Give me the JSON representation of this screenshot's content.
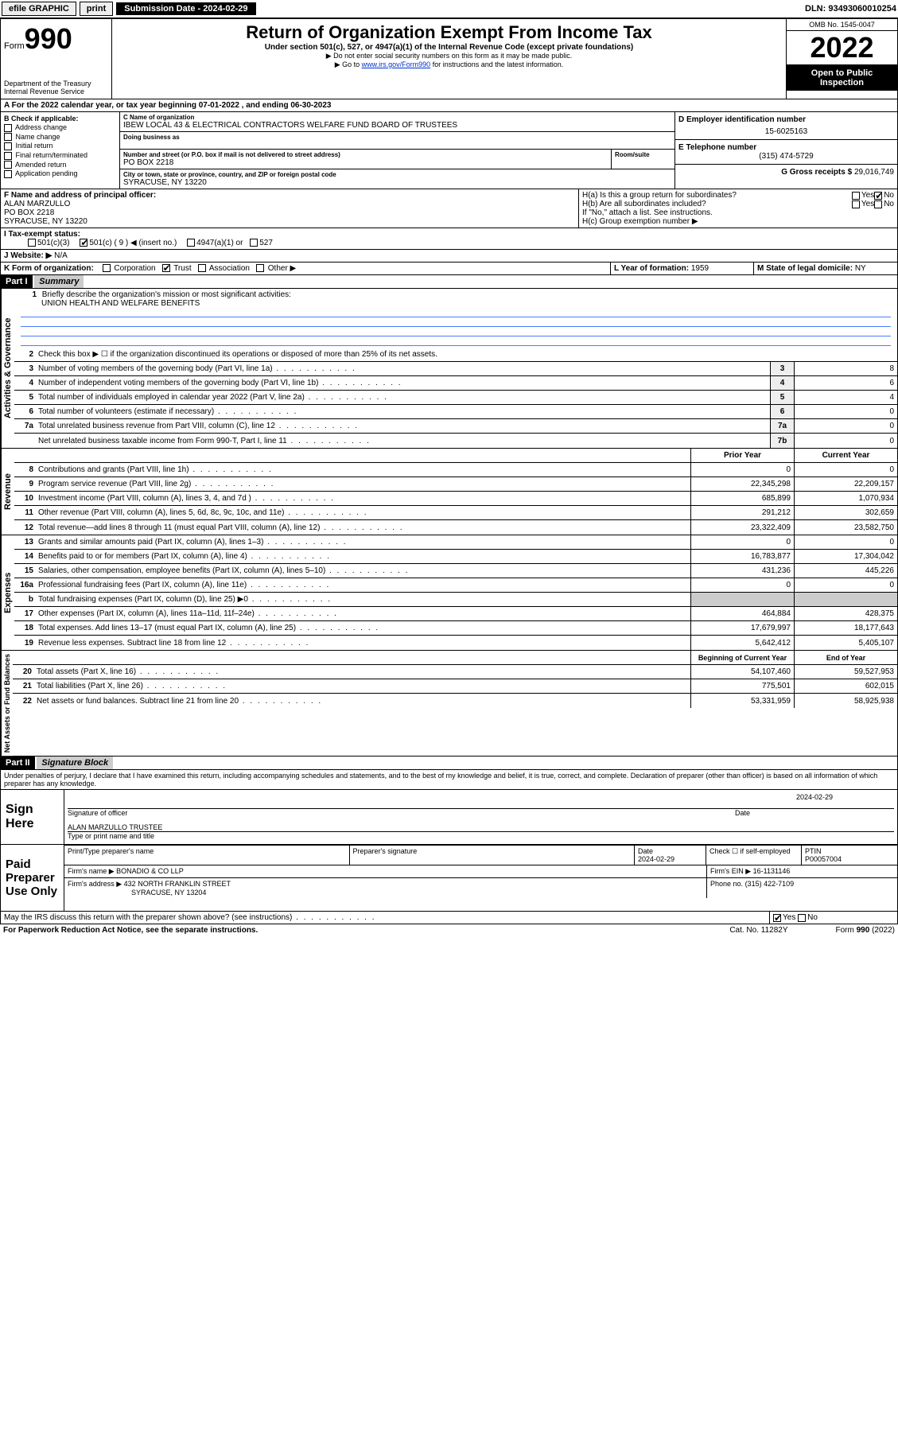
{
  "topbar": {
    "efile": "efile GRAPHIC",
    "print": "print",
    "submission_label": "Submission Date - 2024-02-29",
    "dln": "DLN: 93493060010254"
  },
  "header": {
    "form_word": "Form",
    "form_num": "990",
    "dept": "Department of the Treasury\nInternal Revenue Service",
    "title": "Return of Organization Exempt From Income Tax",
    "sub": "Under section 501(c), 527, or 4947(a)(1) of the Internal Revenue Code (except private foundations)",
    "note1": "▶ Do not enter social security numbers on this form as it may be made public.",
    "note2_pre": "▶ Go to ",
    "note2_link": "www.irs.gov/Form990",
    "note2_post": " for instructions and the latest information.",
    "omb": "OMB No. 1545-0047",
    "year": "2022",
    "inspection": "Open to Public Inspection"
  },
  "line_a": "For the 2022 calendar year, or tax year beginning 07-01-2022    , and ending 06-30-2023",
  "section_b": {
    "label": "B Check if applicable:",
    "opts": [
      "Address change",
      "Name change",
      "Initial return",
      "Final return/terminated",
      "Amended return",
      "Application pending"
    ]
  },
  "section_c": {
    "name_label": "C Name of organization",
    "name": "IBEW LOCAL 43 & ELECTRICAL CONTRACTORS WELFARE FUND BOARD OF TRUSTEES",
    "dba": "Doing business as",
    "addr_label": "Number and street (or P.O. box if mail is not delivered to street address)",
    "room": "Room/suite",
    "addr": "PO BOX 2218",
    "city_label": "City or town, state or province, country, and ZIP or foreign postal code",
    "city": "SYRACUSE, NY  13220"
  },
  "section_d": {
    "label": "D Employer identification number",
    "val": "15-6025163"
  },
  "section_e": {
    "label": "E Telephone number",
    "val": "(315) 474-5729"
  },
  "section_g": {
    "label": "G Gross receipts $",
    "val": "29,016,749"
  },
  "section_f": {
    "label": "F  Name and address of principal officer:",
    "name": "ALAN MARZULLO",
    "addr1": "PO BOX 2218",
    "addr2": "SYRACUSE, NY  13220"
  },
  "section_h": {
    "ha": "H(a)  Is this a group return for subordinates?",
    "hb": "H(b)  Are all subordinates included?",
    "hb_note": "If \"No,\" attach a list. See instructions.",
    "hc": "H(c)  Group exemption number ▶",
    "yes": "Yes",
    "no": "No"
  },
  "section_i": {
    "label": "I    Tax-exempt status:",
    "o1": "501(c)(3)",
    "o2": "501(c) ( 9 ) ◀ (insert no.)",
    "o3": "4947(a)(1) or",
    "o4": "527"
  },
  "section_j": {
    "label": "J   Website: ▶",
    "val": "N/A"
  },
  "section_k": {
    "label": "K Form of organization:",
    "opts": [
      "Corporation",
      "Trust",
      "Association",
      "Other ▶"
    ]
  },
  "section_l": {
    "label": "L Year of formation:",
    "val": "1959"
  },
  "section_m": {
    "label": "M State of legal domicile:",
    "val": "NY"
  },
  "part1": {
    "hdr": "Part I",
    "title": "Summary",
    "q1": "Briefly describe the organization's mission or most significant activities:",
    "mission": "UNION HEALTH AND WELFARE BENEFITS",
    "q2": "Check this box ▶ ☐  if the organization discontinued its operations or disposed of more than 25% of its net assets.",
    "rows_ag": [
      {
        "n": "3",
        "t": "Number of voting members of the governing body (Part VI, line 1a)",
        "box": "3",
        "v": "8"
      },
      {
        "n": "4",
        "t": "Number of independent voting members of the governing body (Part VI, line 1b)",
        "box": "4",
        "v": "6"
      },
      {
        "n": "5",
        "t": "Total number of individuals employed in calendar year 2022 (Part V, line 2a)",
        "box": "5",
        "v": "4"
      },
      {
        "n": "6",
        "t": "Total number of volunteers (estimate if necessary)",
        "box": "6",
        "v": "0"
      },
      {
        "n": "7a",
        "t": "Total unrelated business revenue from Part VIII, column (C), line 12",
        "box": "7a",
        "v": "0"
      },
      {
        "n": "",
        "t": "Net unrelated business taxable income from Form 990-T, Part I, line 11",
        "box": "7b",
        "v": "0"
      }
    ],
    "col_prior": "Prior Year",
    "col_curr": "Current Year",
    "rows_rev": [
      {
        "n": "8",
        "t": "Contributions and grants (Part VIII, line 1h)",
        "p": "0",
        "c": "0"
      },
      {
        "n": "9",
        "t": "Program service revenue (Part VIII, line 2g)",
        "p": "22,345,298",
        "c": "22,209,157"
      },
      {
        "n": "10",
        "t": "Investment income (Part VIII, column (A), lines 3, 4, and 7d )",
        "p": "685,899",
        "c": "1,070,934"
      },
      {
        "n": "11",
        "t": "Other revenue (Part VIII, column (A), lines 5, 6d, 8c, 9c, 10c, and 11e)",
        "p": "291,212",
        "c": "302,659"
      },
      {
        "n": "12",
        "t": "Total revenue—add lines 8 through 11 (must equal Part VIII, column (A), line 12)",
        "p": "23,322,409",
        "c": "23,582,750"
      }
    ],
    "rows_exp": [
      {
        "n": "13",
        "t": "Grants and similar amounts paid (Part IX, column (A), lines 1–3)",
        "p": "0",
        "c": "0"
      },
      {
        "n": "14",
        "t": "Benefits paid to or for members (Part IX, column (A), line 4)",
        "p": "16,783,877",
        "c": "17,304,042"
      },
      {
        "n": "15",
        "t": "Salaries, other compensation, employee benefits (Part IX, column (A), lines 5–10)",
        "p": "431,236",
        "c": "445,226"
      },
      {
        "n": "16a",
        "t": "Professional fundraising fees (Part IX, column (A), line 11e)",
        "p": "0",
        "c": "0"
      },
      {
        "n": "b",
        "t": "Total fundraising expenses (Part IX, column (D), line 25) ▶0",
        "p": "",
        "c": "",
        "grey": true
      },
      {
        "n": "17",
        "t": "Other expenses (Part IX, column (A), lines 11a–11d, 11f–24e)",
        "p": "464,884",
        "c": "428,375"
      },
      {
        "n": "18",
        "t": "Total expenses. Add lines 13–17 (must equal Part IX, column (A), line 25)",
        "p": "17,679,997",
        "c": "18,177,643"
      },
      {
        "n": "19",
        "t": "Revenue less expenses. Subtract line 18 from line 12",
        "p": "5,642,412",
        "c": "5,405,107"
      }
    ],
    "col_beg": "Beginning of Current Year",
    "col_end": "End of Year",
    "rows_na": [
      {
        "n": "20",
        "t": "Total assets (Part X, line 16)",
        "p": "54,107,460",
        "c": "59,527,953"
      },
      {
        "n": "21",
        "t": "Total liabilities (Part X, line 26)",
        "p": "775,501",
        "c": "602,015"
      },
      {
        "n": "22",
        "t": "Net assets or fund balances. Subtract line 21 from line 20",
        "p": "53,331,959",
        "c": "58,925,938"
      }
    ],
    "vlabels": {
      "ag": "Activities & Governance",
      "rev": "Revenue",
      "exp": "Expenses",
      "na": "Net Assets or Fund Balances"
    }
  },
  "part2": {
    "hdr": "Part II",
    "title": "Signature Block",
    "decl": "Under penalties of perjury, I declare that I have examined this return, including accompanying schedules and statements, and to the best of my knowledge and belief, it is true, correct, and complete. Declaration of preparer (other than officer) is based on all information of which preparer has any knowledge.",
    "sign_here": "Sign Here",
    "sig_officer": "Signature of officer",
    "sig_date": "2024-02-29",
    "date_label": "Date",
    "officer_name": "ALAN MARZULLO  TRUSTEE",
    "type_name": "Type or print name and title",
    "paid": "Paid Preparer Use Only",
    "p_name_label": "Print/Type preparer's name",
    "p_sig_label": "Preparer's signature",
    "p_date_label": "Date",
    "p_date": "2024-02-29",
    "p_check": "Check ☐ if self-employed",
    "ptin_label": "PTIN",
    "ptin": "P00057004",
    "firm_name_label": "Firm's name    ▶",
    "firm_name": "BONADIO & CO LLP",
    "firm_ein_label": "Firm's EIN ▶",
    "firm_ein": "16-1131146",
    "firm_addr_label": "Firm's address ▶",
    "firm_addr1": "432 NORTH FRANKLIN STREET",
    "firm_addr2": "SYRACUSE, NY  13204",
    "phone_label": "Phone no.",
    "phone": "(315) 422-7109",
    "may_irs": "May the IRS discuss this return with the preparer shown above? (see instructions)",
    "yes": "Yes",
    "no": "No"
  },
  "footer": {
    "pra": "For Paperwork Reduction Act Notice, see the separate instructions.",
    "cat": "Cat. No. 11282Y",
    "form": "Form 990 (2022)"
  }
}
